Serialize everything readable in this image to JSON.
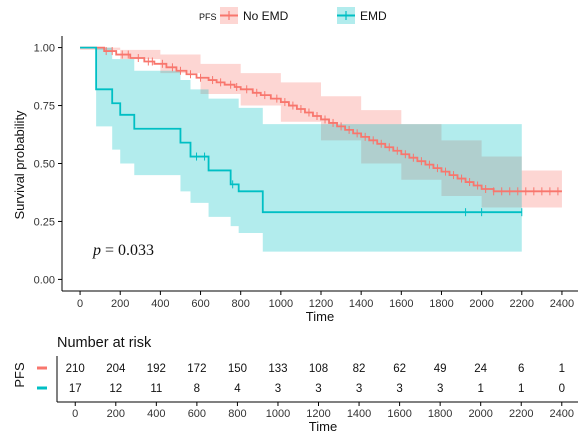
{
  "chart_data": {
    "type": "line",
    "subtype": "kaplan-meier",
    "xlabel": "Time",
    "ylabel": "Survival probability",
    "xlim": [
      -90,
      2480
    ],
    "ylim": [
      -0.05,
      1.05
    ],
    "x_ticks": [
      0,
      200,
      400,
      600,
      800,
      1000,
      1200,
      1400,
      1600,
      1800,
      2000,
      2200,
      2400
    ],
    "y_ticks": [
      "0.00",
      "0.25",
      "0.50",
      "0.75",
      "1.00"
    ],
    "grid": false,
    "legend": {
      "title": "PFS",
      "placement": "top",
      "entries": [
        "No EMD",
        "EMD"
      ]
    },
    "annotation": {
      "p_symbol": "p",
      "p_text": " = 0.033"
    },
    "series": [
      {
        "name": "No EMD",
        "color": "#F8766D",
        "band_color": "#F8766D",
        "steps": [
          [
            0,
            1.0
          ],
          [
            120,
            0.985
          ],
          [
            180,
            0.97
          ],
          [
            250,
            0.955
          ],
          [
            320,
            0.94
          ],
          [
            370,
            0.93
          ],
          [
            430,
            0.915
          ],
          [
            480,
            0.9
          ],
          [
            530,
            0.885
          ],
          [
            580,
            0.87
          ],
          [
            640,
            0.86
          ],
          [
            680,
            0.85
          ],
          [
            720,
            0.84
          ],
          [
            770,
            0.83
          ],
          [
            800,
            0.82
          ],
          [
            860,
            0.805
          ],
          [
            900,
            0.795
          ],
          [
            950,
            0.78
          ],
          [
            1000,
            0.765
          ],
          [
            1040,
            0.75
          ],
          [
            1080,
            0.735
          ],
          [
            1120,
            0.72
          ],
          [
            1160,
            0.705
          ],
          [
            1200,
            0.69
          ],
          [
            1240,
            0.675
          ],
          [
            1280,
            0.66
          ],
          [
            1320,
            0.645
          ],
          [
            1360,
            0.63
          ],
          [
            1400,
            0.615
          ],
          [
            1440,
            0.6
          ],
          [
            1480,
            0.585
          ],
          [
            1520,
            0.57
          ],
          [
            1560,
            0.555
          ],
          [
            1600,
            0.54
          ],
          [
            1640,
            0.525
          ],
          [
            1680,
            0.51
          ],
          [
            1720,
            0.495
          ],
          [
            1760,
            0.48
          ],
          [
            1800,
            0.465
          ],
          [
            1840,
            0.45
          ],
          [
            1880,
            0.435
          ],
          [
            1920,
            0.42
          ],
          [
            1960,
            0.405
          ],
          [
            2000,
            0.39
          ],
          [
            2060,
            0.38
          ],
          [
            2400,
            0.38
          ]
        ],
        "upper": [
          [
            0,
            1.0
          ],
          [
            200,
            0.99
          ],
          [
            400,
            0.97
          ],
          [
            600,
            0.93
          ],
          [
            800,
            0.89
          ],
          [
            1000,
            0.85
          ],
          [
            1200,
            0.79
          ],
          [
            1400,
            0.73
          ],
          [
            1600,
            0.67
          ],
          [
            1800,
            0.6
          ],
          [
            2000,
            0.53
          ],
          [
            2200,
            0.47
          ],
          [
            2400,
            0.47
          ]
        ],
        "lower": [
          [
            0,
            0.99
          ],
          [
            200,
            0.95
          ],
          [
            400,
            0.89
          ],
          [
            600,
            0.8
          ],
          [
            800,
            0.75
          ],
          [
            1000,
            0.68
          ],
          [
            1200,
            0.6
          ],
          [
            1400,
            0.5
          ],
          [
            1600,
            0.43
          ],
          [
            1800,
            0.36
          ],
          [
            2000,
            0.31
          ],
          [
            2200,
            0.31
          ],
          [
            2400,
            0.31
          ]
        ],
        "censored": [
          130,
          160,
          210,
          240,
          290,
          340,
          360,
          410,
          460,
          500,
          550,
          600,
          660,
          700,
          750,
          780,
          830,
          880,
          920,
          980,
          1020,
          1060,
          1100,
          1140,
          1180,
          1220,
          1260,
          1300,
          1340,
          1380,
          1420,
          1460,
          1500,
          1540,
          1580,
          1620,
          1660,
          1700,
          1740,
          1780,
          1820,
          1860,
          1900,
          1940,
          1980,
          2020,
          2060,
          2100,
          2140,
          2180,
          2220,
          2260,
          2300,
          2340,
          2380
        ]
      },
      {
        "name": "EMD",
        "color": "#00BFC4",
        "band_color": "#00BFC4",
        "steps": [
          [
            0,
            1.0
          ],
          [
            80,
            0.82
          ],
          [
            160,
            0.76
          ],
          [
            200,
            0.71
          ],
          [
            270,
            0.65
          ],
          [
            500,
            0.59
          ],
          [
            550,
            0.53
          ],
          [
            640,
            0.47
          ],
          [
            750,
            0.41
          ],
          [
            790,
            0.38
          ],
          [
            910,
            0.29
          ],
          [
            2200,
            0.29
          ]
        ],
        "upper": [
          [
            0,
            1.0
          ],
          [
            80,
            1.0
          ],
          [
            160,
            0.95
          ],
          [
            270,
            0.9
          ],
          [
            500,
            0.86
          ],
          [
            550,
            0.82
          ],
          [
            640,
            0.78
          ],
          [
            790,
            0.74
          ],
          [
            910,
            0.67
          ],
          [
            2200,
            0.67
          ]
        ],
        "lower": [
          [
            0,
            1.0
          ],
          [
            80,
            0.66
          ],
          [
            160,
            0.56
          ],
          [
            200,
            0.5
          ],
          [
            270,
            0.45
          ],
          [
            500,
            0.38
          ],
          [
            550,
            0.33
          ],
          [
            640,
            0.27
          ],
          [
            750,
            0.23
          ],
          [
            790,
            0.2
          ],
          [
            910,
            0.12
          ],
          [
            2200,
            0.12
          ]
        ],
        "censored": [
          580,
          620,
          760,
          1920,
          2000,
          2200
        ]
      }
    ]
  },
  "risk_table": {
    "title": "Number at risk",
    "group_label": "PFS",
    "xlabel": "Time",
    "x_ticks": [
      0,
      200,
      400,
      600,
      800,
      1000,
      1200,
      1400,
      1600,
      1800,
      2000,
      2200,
      2400
    ],
    "rows": [
      {
        "group": "No EMD",
        "color": "#F8766D",
        "values": [
          210,
          204,
          192,
          172,
          150,
          133,
          108,
          82,
          62,
          49,
          24,
          6,
          1
        ]
      },
      {
        "group": "EMD",
        "color": "#00BFC4",
        "values": [
          17,
          12,
          11,
          8,
          4,
          3,
          3,
          3,
          3,
          3,
          1,
          1,
          0
        ]
      }
    ]
  }
}
